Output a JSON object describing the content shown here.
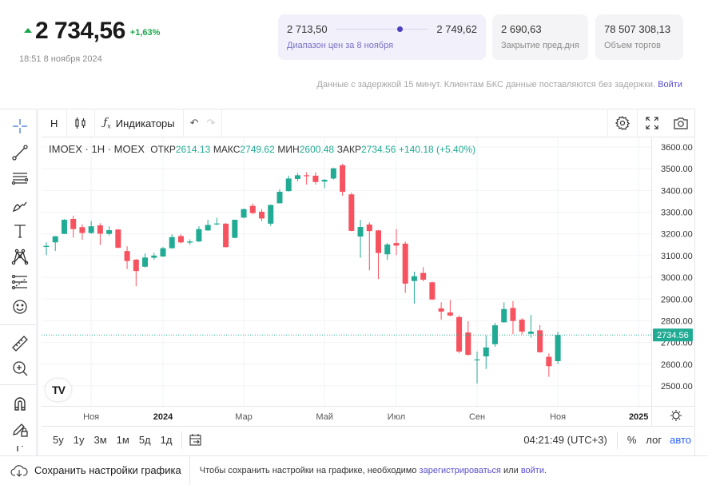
{
  "quote": {
    "price": "2 734,56",
    "change_pct": "+1,63%",
    "direction": "up",
    "timestamp": "18:51 8 ноября 2024"
  },
  "stats": {
    "range_low": "2 713,50",
    "range_high": "2 749,62",
    "range_position": 0.66,
    "range_label": "Диапазон цен за 8 ноября",
    "prev_close": "2 690,63",
    "prev_close_label": "Закрытие пред.дня",
    "volume": "78 507 308,13",
    "volume_label": "Объем торгов"
  },
  "delay_notice": {
    "text": "Данные с задержкой 15 минут. Клиентам БКС данные поставляются без задержки.",
    "login": "Войти"
  },
  "toolbar": {
    "interval": "Н",
    "indicators": "Индикаторы"
  },
  "legend": {
    "symbol": "IMOEX",
    "interval": "1H",
    "exchange": "MOEX",
    "open_label": "ОТКР",
    "open": "2614.13",
    "high_label": "МАКС",
    "high": "2749.62",
    "low_label": "МИН",
    "low": "2600.48",
    "close_label": "ЗАКР",
    "close": "2734.56",
    "change": "+140.18 (+5.40%)"
  },
  "chart_data": {
    "type": "candlestick",
    "ylim": [
      2450,
      3640
    ],
    "y_ticks": [
      "3600.00",
      "3500.00",
      "3400.00",
      "3300.00",
      "3200.00",
      "3100.00",
      "3000.00",
      "2900.00",
      "2800.00",
      "2700.00",
      "2600.00",
      "2500.00"
    ],
    "last_price_label": "2734.56",
    "last_price": 2734.56,
    "x_ticks": [
      {
        "label": "Ноя",
        "candle": 5
      },
      {
        "label": "2024",
        "candle": 13,
        "bold": true
      },
      {
        "label": "Мар",
        "candle": 22
      },
      {
        "label": "Май",
        "candle": 31
      },
      {
        "label": "Июл",
        "candle": 39
      },
      {
        "label": "Сен",
        "candle": 48
      },
      {
        "label": "Ноя",
        "candle": 57
      },
      {
        "label": "2025",
        "candle": 66,
        "bold": true
      }
    ],
    "colors": {
      "up": "#22ab94",
      "down": "#f7525f"
    },
    "grid": true,
    "ohlc": [
      [
        3140,
        3161,
        3102,
        3145
      ],
      [
        3161,
        3190,
        3122,
        3189
      ],
      [
        3200,
        3268,
        3200,
        3265
      ],
      [
        3269,
        3284,
        3183,
        3222
      ],
      [
        3231,
        3244,
        3173,
        3204
      ],
      [
        3204,
        3259,
        3200,
        3235
      ],
      [
        3239,
        3249,
        3149,
        3201
      ],
      [
        3200,
        3235,
        3192,
        3217
      ],
      [
        3220,
        3222,
        3134,
        3136
      ],
      [
        3121,
        3143,
        3038,
        3075
      ],
      [
        3081,
        3085,
        2959,
        3029
      ],
      [
        3049,
        3110,
        3045,
        3091
      ],
      [
        3090,
        3113,
        3081,
        3100
      ],
      [
        3096,
        3140,
        3094,
        3134
      ],
      [
        3134,
        3198,
        3132,
        3185
      ],
      [
        3190,
        3198,
        3156,
        3161
      ],
      [
        3160,
        3175,
        3150,
        3165
      ],
      [
        3165,
        3235,
        3163,
        3222
      ],
      [
        3216,
        3265,
        3214,
        3241
      ],
      [
        3245,
        3274,
        3240,
        3248
      ],
      [
        3247,
        3250,
        3137,
        3139
      ],
      [
        3182,
        3265,
        3180,
        3265
      ],
      [
        3275,
        3317,
        3272,
        3314
      ],
      [
        3329,
        3340,
        3290,
        3296
      ],
      [
        3302,
        3314,
        3259,
        3271
      ],
      [
        3247,
        3335,
        3237,
        3333
      ],
      [
        3341,
        3406,
        3340,
        3394
      ],
      [
        3397,
        3467,
        3395,
        3455
      ],
      [
        3453,
        3480,
        3442,
        3470
      ],
      [
        3470,
        3484,
        3427,
        3466
      ],
      [
        3468,
        3484,
        3427,
        3439
      ],
      [
        3441,
        3452,
        3410,
        3449
      ],
      [
        3455,
        3505,
        3450,
        3502
      ],
      [
        3516,
        3523,
        3376,
        3394
      ],
      [
        3382,
        3390,
        3212,
        3214
      ],
      [
        3188,
        3265,
        3090,
        3232
      ],
      [
        3243,
        3253,
        3032,
        3213
      ],
      [
        3216,
        3218,
        2992,
        3112
      ],
      [
        3106,
        3158,
        3080,
        3151
      ],
      [
        3158,
        3222,
        3102,
        3146
      ],
      [
        3155,
        3165,
        2928,
        2971
      ],
      [
        2983,
        3026,
        2879,
        3005
      ],
      [
        3020,
        3047,
        2981,
        2989
      ],
      [
        2977,
        2980,
        2895,
        2898
      ],
      [
        2857,
        2885,
        2805,
        2842
      ],
      [
        2838,
        2896,
        2820,
        2824
      ],
      [
        2817,
        2825,
        2650,
        2658
      ],
      [
        2746,
        2798,
        2640,
        2643
      ],
      [
        2618,
        2658,
        2511,
        2622
      ],
      [
        2636,
        2732,
        2578,
        2677
      ],
      [
        2692,
        2790,
        2680,
        2779
      ],
      [
        2793,
        2885,
        2790,
        2854
      ],
      [
        2859,
        2891,
        2738,
        2799
      ],
      [
        2805,
        2812,
        2738,
        2750
      ],
      [
        2740,
        2827,
        2722,
        2750
      ],
      [
        2756,
        2780,
        2653,
        2655
      ],
      [
        2634,
        2650,
        2542,
        2591
      ],
      [
        2614.13,
        2749.62,
        2600.48,
        2734.56
      ]
    ]
  },
  "bottom_toolbar": {
    "ranges": [
      "5y",
      "1y",
      "3м",
      "1м",
      "5д",
      "1д"
    ],
    "time": "04:21:49 (UTC+3)",
    "pct": "%",
    "log": "лог",
    "auto": "авто"
  },
  "footer": {
    "save_label": "Сохранить настройки графика",
    "note_prefix": "Чтобы сохранить настройки на графике, необходимо",
    "register": "зарегистрироваться",
    "or": "или",
    "login": "войти",
    "suffix": "."
  }
}
